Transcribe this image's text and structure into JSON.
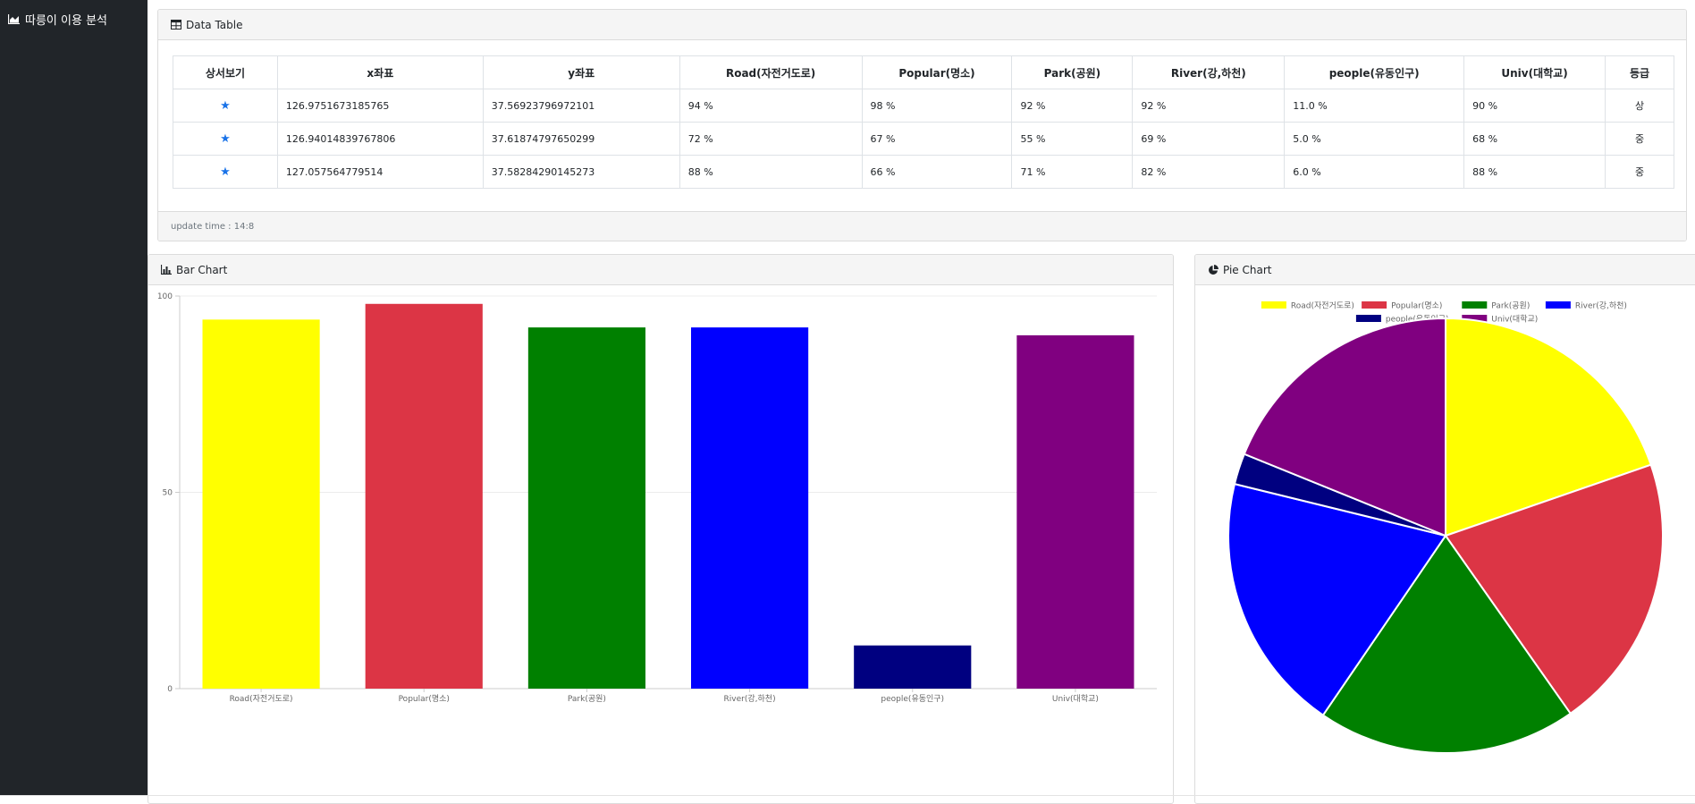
{
  "app": {
    "title": "따릉이 이용 분석",
    "icon": "area-chart-icon"
  },
  "table_card": {
    "title": "Data Table",
    "icon": "table-icon",
    "columns": [
      "상서보기",
      "x좌표",
      "y좌표",
      "Road(자전거도로)",
      "Popular(명소)",
      "Park(공원)",
      "River(강,하천)",
      "people(유동인구)",
      "Univ(대학교)",
      "등급"
    ],
    "rows": [
      {
        "detail": "★",
        "x": "126.9751673185765",
        "y": "37.56923796972101",
        "road": "94 %",
        "popular": "98 %",
        "park": "92 %",
        "river": "92 %",
        "people": "11.0 %",
        "univ": "90 %",
        "grade": "상"
      },
      {
        "detail": "★",
        "x": "126.94014839767806",
        "y": "37.61874797650299",
        "road": "72 %",
        "popular": "67 %",
        "park": "55 %",
        "river": "69 %",
        "people": "5.0 %",
        "univ": "68 %",
        "grade": "중"
      },
      {
        "detail": "★",
        "x": "127.057564779514",
        "y": "37.58284290145273",
        "road": "88 %",
        "popular": "66 %",
        "park": "71 %",
        "river": "82 %",
        "people": "6.0 %",
        "univ": "88 %",
        "grade": "중"
      }
    ],
    "footer": "update time : 14:8"
  },
  "bar_card": {
    "title": "Bar Chart",
    "icon": "bar-chart-icon"
  },
  "pie_card": {
    "title": "Pie Chart",
    "icon": "pie-chart-icon"
  },
  "colors": {
    "sidebar_bg": "#212529",
    "star": "#1a73e8"
  },
  "chart_data": [
    {
      "type": "bar",
      "title": "Bar Chart",
      "categories": [
        "Road(자전거도로)",
        "Popular(명소)",
        "Park(공원)",
        "River(강,하천)",
        "people(유동인구)",
        "Univ(대학교)"
      ],
      "values": [
        94,
        98,
        92,
        92,
        11,
        90
      ],
      "colors": [
        "#ffff00",
        "#dc3545",
        "#008000",
        "#0000ff",
        "#000080",
        "#800080"
      ],
      "yticks": [
        0,
        50,
        100
      ],
      "ylim": [
        0,
        100
      ],
      "xlabel": "",
      "ylabel": "",
      "grid": true
    },
    {
      "type": "pie",
      "title": "Pie Chart",
      "labels": [
        "Road(자전거도로)",
        "Popular(명소)",
        "Park(공원)",
        "River(강,하천)",
        "people(유동인구)",
        "Univ(대학교)"
      ],
      "values": [
        94,
        98,
        92,
        92,
        11,
        90
      ],
      "colors": [
        "#ffff00",
        "#dc3545",
        "#008000",
        "#0000ff",
        "#000080",
        "#800080"
      ],
      "legend": "top"
    }
  ]
}
